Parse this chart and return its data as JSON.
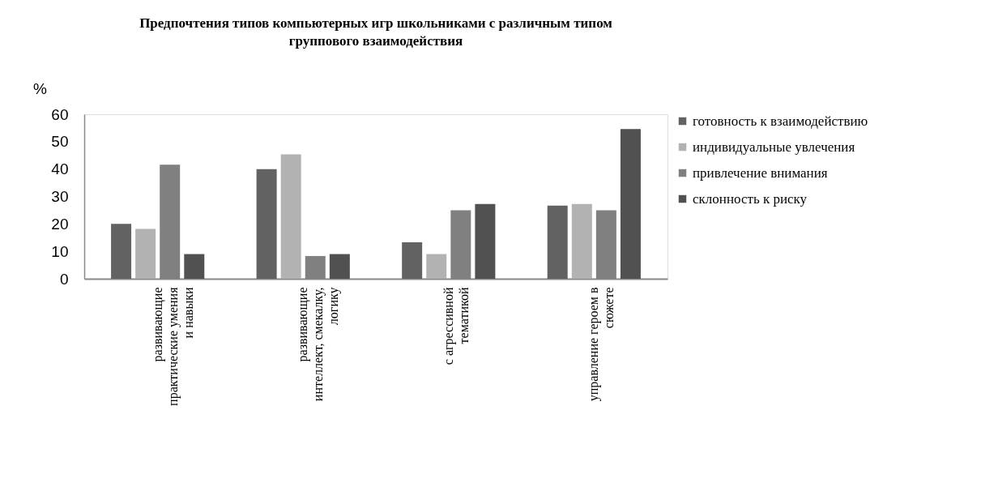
{
  "chart_data": {
    "type": "bar",
    "title": "Предпочтения типов компьютерных игр школьниками с различным типом\nгруппового взаимодействия",
    "ylabel": "%",
    "categories": [
      "развивающие\nпрактические  умения\nи навыки",
      "развивающие\nинтеллект, смекалку,\nлогику",
      "с агрессивной\nтематикой",
      "управление героем в\nсюжете"
    ],
    "series": [
      {
        "name": "готовность к взаимодействию",
        "color": "#626262",
        "values": [
          20,
          40,
          13.3,
          26.7
        ]
      },
      {
        "name": "индивидуальные увлечения",
        "color": "#b2b2b2",
        "values": [
          18.2,
          45.4,
          9,
          27.3
        ]
      },
      {
        "name": "привлечение внимания",
        "color": "#808080",
        "values": [
          41.6,
          8.3,
          25,
          25
        ]
      },
      {
        "name": "склонность к риску",
        "color": "#515151",
        "values": [
          9,
          9,
          27.3,
          54.6
        ]
      }
    ],
    "ylim": [
      0,
      60
    ],
    "yticks": [
      0,
      10,
      20,
      30,
      40,
      50,
      60
    ],
    "grid": false,
    "legend": "right"
  }
}
